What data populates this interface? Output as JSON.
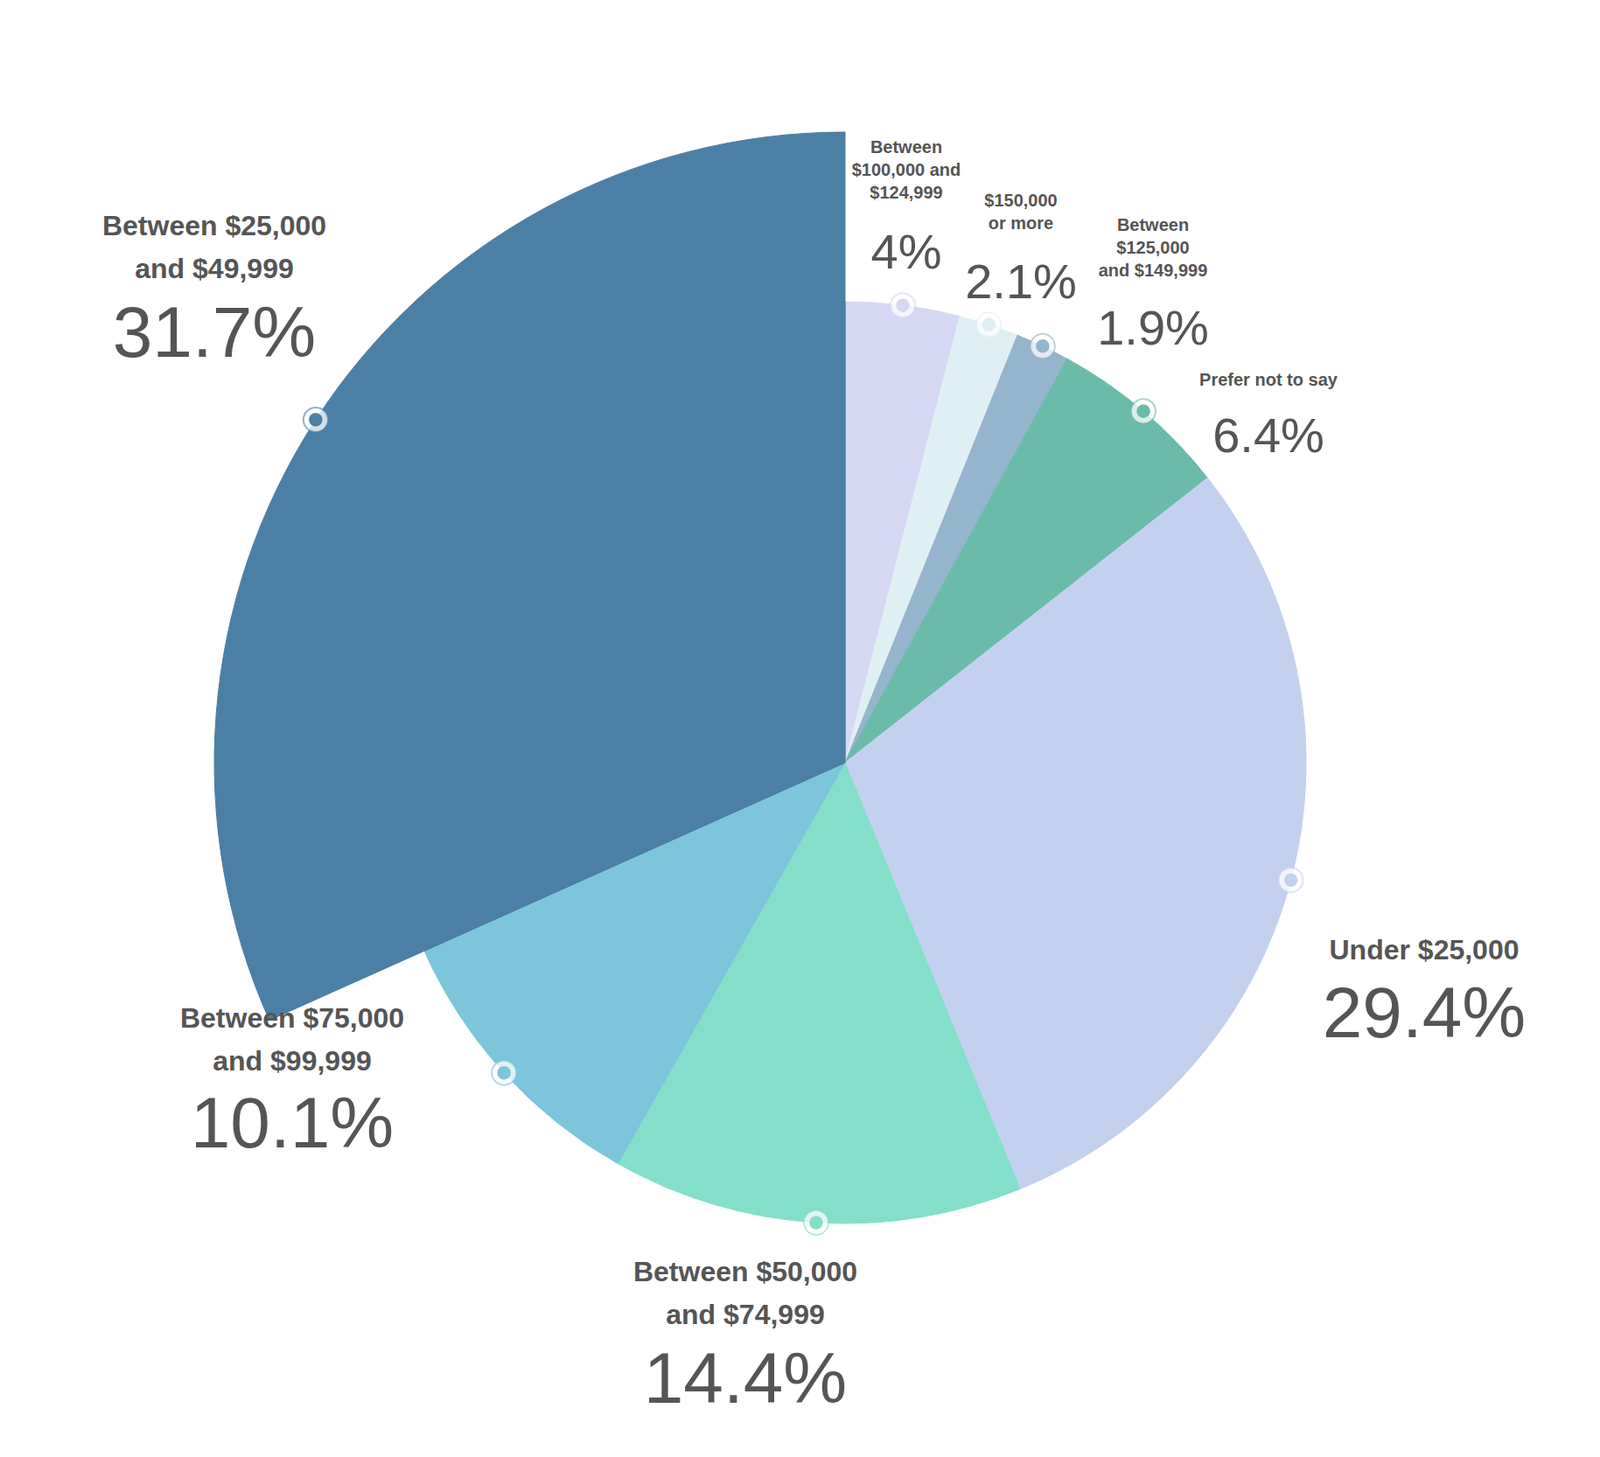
{
  "chart_data": {
    "type": "pie",
    "categories": [
      "Between $100,000 and $124,999",
      "$150,000 or more",
      "Between $125,000 and $149,999",
      "Prefer not to say",
      "Under $25,000",
      "Between $50,000 and $74,999",
      "Between $75,000 and $99,999",
      "Between $25,000 and $49,999"
    ],
    "values": [
      4,
      2.1,
      1.9,
      6.4,
      29.4,
      14.4,
      10.1,
      31.7
    ],
    "value_labels": [
      "4%",
      "2.1%",
      "1.9%",
      "6.4%",
      "29.4%",
      "14.4%",
      "10.1%",
      "31.7%"
    ],
    "colors": [
      "#d6d8f3",
      "#dff0f4",
      "#94b5cb",
      "#6bbbab",
      "#c4d1ee",
      "#84dfca",
      "#7cc5da",
      "#4c7fa5"
    ],
    "data_labels": true
  }
}
